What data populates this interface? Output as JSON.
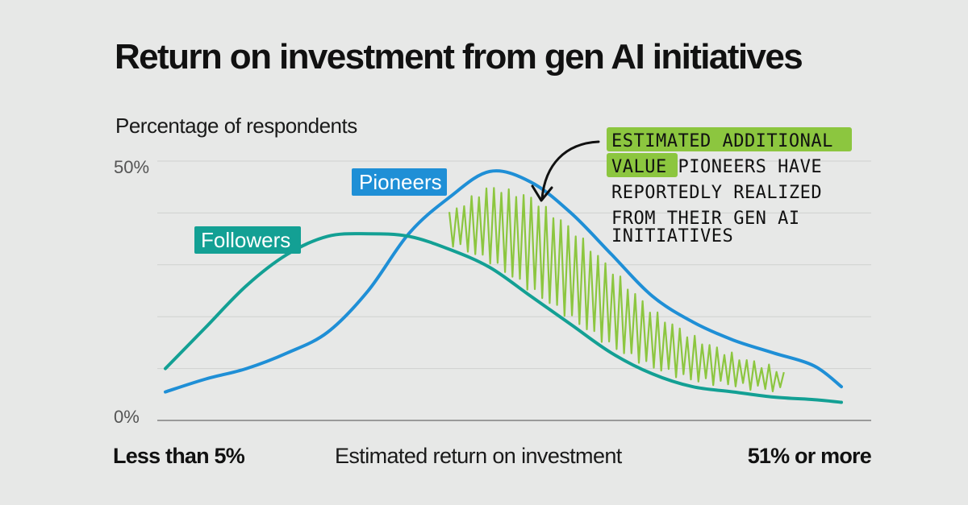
{
  "chart_data": {
    "type": "line",
    "title": "Return on investment from gen AI initiatives",
    "ylabel": "Percentage of respondents",
    "xlabel": "Estimated return on investment",
    "x_start_label": "Less than 5%",
    "x_end_label": "51% or more",
    "y_ticks": [
      "50%",
      "0%"
    ],
    "ylim": [
      0,
      50
    ],
    "xlim": [
      0,
      100
    ],
    "grid": true,
    "series": [
      {
        "name": "Pioneers",
        "color": "#1f8fd6",
        "x": [
          0,
          6,
          12,
          18,
          24,
          30,
          36,
          42,
          48,
          54,
          60,
          66,
          72,
          78,
          84,
          90,
          96,
          100
        ],
        "values": [
          5.5,
          8,
          10,
          13,
          17,
          25,
          36,
          43,
          48,
          46,
          40,
          32,
          24,
          19,
          15.5,
          13,
          10.5,
          6.5
        ]
      },
      {
        "name": "Followers",
        "color": "#13a094",
        "x": [
          0,
          6,
          12,
          18,
          24,
          30,
          36,
          42,
          48,
          54,
          60,
          66,
          72,
          78,
          84,
          90,
          96,
          100
        ],
        "values": [
          10,
          18,
          26,
          32,
          35.5,
          36,
          35.5,
          33,
          29.5,
          24,
          18.5,
          13,
          9,
          6.5,
          5.5,
          4.5,
          4,
          3.5
        ]
      }
    ],
    "annotation": {
      "highlight": "ESTIMATED ADDITIONAL VALUE",
      "lines": [
        "ESTIMATED ADDITIONAL",
        "VALUE PIONEERS HAVE",
        "REPORTEDLY REALIZED",
        "FROM THEIR GEN AI",
        "INITIATIVES"
      ],
      "highlight_color": "#8cc63f"
    }
  }
}
